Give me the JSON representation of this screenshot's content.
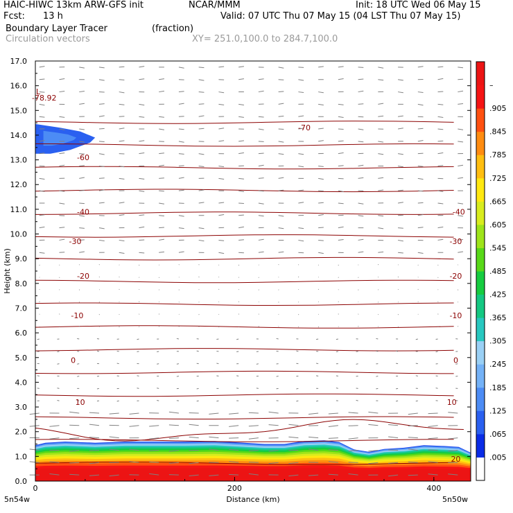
{
  "header": {
    "model": "HAIC-HIWC 13km ARW-GFS init",
    "org": "NCAR/MMM",
    "init": "Init: 18 UTC Wed 06 May 15",
    "fcst_label": "Fcst:",
    "fcst_value": "13 h",
    "valid": "Valid: 07 UTC Thu 07 May 15 (04 LST Thu 07 May 15)",
    "field": "Boundary Layer Tracer",
    "units": "(fraction)",
    "overlay": "Circulation vectors",
    "xy": "XY= 251.0,100.0 to 284.7,100.0"
  },
  "chart_data": {
    "type": "heatmap",
    "xlabel": "Distance (km)",
    "ylabel": "Height (km)",
    "xlim": [
      0,
      437
    ],
    "ylim": [
      0,
      17
    ],
    "x_ticks": [
      "0",
      "200",
      "400"
    ],
    "y_ticks": [
      "0.0",
      "1.0",
      "2.0",
      "3.0",
      "4.0",
      "5.0",
      "6.0",
      "7.0",
      "8.0",
      "9.0",
      "10.0",
      "11.0",
      "12.0",
      "13.0",
      "14.0",
      "15.0",
      "16.0",
      "17.0"
    ],
    "x_end_labels": [
      "5n54w",
      "5n50w"
    ],
    "low_marker": "L",
    "low_value": "-78.92",
    "low_position": [
      20,
      15.55
    ],
    "contour_labels": [
      {
        "text": "-70",
        "x": 270,
        "y": 14.3
      },
      {
        "text": "-60",
        "x": 48,
        "y": 13.1
      },
      {
        "text": "-40",
        "x": 48,
        "y": 10.9
      },
      {
        "text": "-40",
        "x": 425,
        "y": 10.9
      },
      {
        "text": "-30",
        "x": 40,
        "y": 9.7
      },
      {
        "text": "-30",
        "x": 422,
        "y": 9.7
      },
      {
        "text": "-20",
        "x": 48,
        "y": 8.3
      },
      {
        "text": "-20",
        "x": 422,
        "y": 8.3
      },
      {
        "text": "-10",
        "x": 42,
        "y": 6.7
      },
      {
        "text": "-10",
        "x": 422,
        "y": 6.7
      },
      {
        "text": "0",
        "x": 38,
        "y": 4.9
      },
      {
        "text": "0",
        "x": 422,
        "y": 4.9
      },
      {
        "text": "10",
        "x": 45,
        "y": 3.2
      },
      {
        "text": "10",
        "x": 418,
        "y": 3.2
      },
      {
        "text": "20",
        "x": 422,
        "y": 0.9
      }
    ],
    "colorbar": {
      "labels": [
        ".005",
        ".065",
        ".125",
        ".185",
        ".245",
        ".305",
        ".365",
        ".425",
        ".485",
        ".545",
        ".605",
        ".665",
        ".725",
        ".785",
        ".845",
        ".905",
        "–"
      ],
      "colors": [
        "#ffffff",
        "#0a2ce6",
        "#2a60f0",
        "#4c8cf5",
        "#74b2f7",
        "#9ad0f5",
        "#28c8c0",
        "#14c882",
        "#16cc40",
        "#58d818",
        "#9ee41a",
        "#d8ec1e",
        "#ffe810",
        "#ffbe10",
        "#ff8c10",
        "#ff5010",
        "#f51414",
        "#ec1414"
      ]
    },
    "tracer_top_km": [
      [
        0,
        1.45
      ],
      [
        10,
        1.55
      ],
      [
        30,
        1.6
      ],
      [
        60,
        1.55
      ],
      [
        90,
        1.6
      ],
      [
        120,
        1.6
      ],
      [
        150,
        1.6
      ],
      [
        180,
        1.62
      ],
      [
        210,
        1.55
      ],
      [
        230,
        1.5
      ],
      [
        250,
        1.5
      ],
      [
        270,
        1.62
      ],
      [
        290,
        1.65
      ],
      [
        305,
        1.58
      ],
      [
        320,
        1.28
      ],
      [
        335,
        1.18
      ],
      [
        350,
        1.3
      ],
      [
        370,
        1.35
      ],
      [
        390,
        1.45
      ],
      [
        410,
        1.42
      ],
      [
        425,
        1.38
      ],
      [
        437,
        1.15
      ]
    ],
    "upper_blob_km": [
      [
        0,
        14.45
      ],
      [
        25,
        14.3
      ],
      [
        45,
        14.15
      ],
      [
        60,
        13.9
      ],
      [
        55,
        13.7
      ],
      [
        35,
        13.4
      ],
      [
        15,
        13.25
      ],
      [
        0,
        13.25
      ]
    ]
  }
}
